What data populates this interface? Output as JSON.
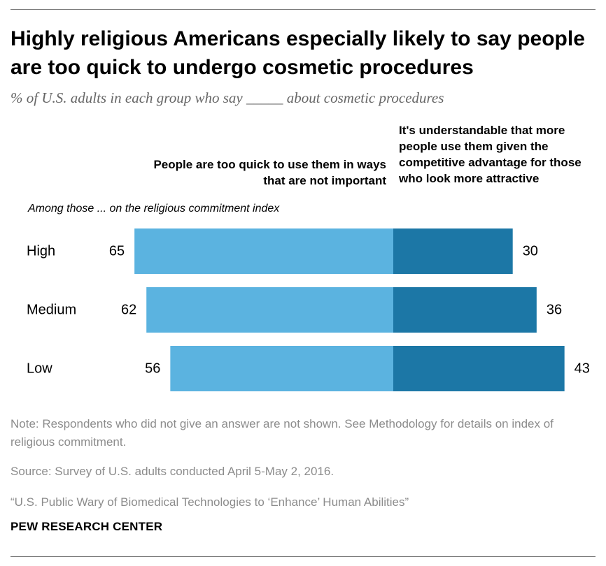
{
  "title": "Highly religious Americans especially likely to say people are too quick to undergo cosmetic procedures",
  "subtitle": "% of U.S. adults in each group who say _____ about cosmetic procedures",
  "group_note": "Among those ... on the religious commitment index",
  "notes": {
    "note": "Note: Respondents who did not give an answer are not shown. See Methodology for details on index of religious commitment.",
    "source": "Source: Survey of U.S. adults conducted April 5-May 2, 2016.",
    "report": "“U.S. Public Wary of Biomedical Technologies to ‘Enhance’ Human Abilities”",
    "brand": "PEW RESEARCH CENTER"
  },
  "chart_data": {
    "type": "bar",
    "orientation": "horizontal-diverging",
    "categories": [
      "High",
      "Medium",
      "Low"
    ],
    "series": [
      {
        "name": "People are too quick to use them in ways that are not important",
        "values": [
          65,
          62,
          56
        ],
        "color": "#5bb3e0"
      },
      {
        "name": "It's understandable that more people use them given the competitive advantage for those who look more attractive",
        "values": [
          30,
          36,
          43
        ],
        "color": "#1c77a6"
      }
    ],
    "data_labels": true,
    "grid": false
  }
}
